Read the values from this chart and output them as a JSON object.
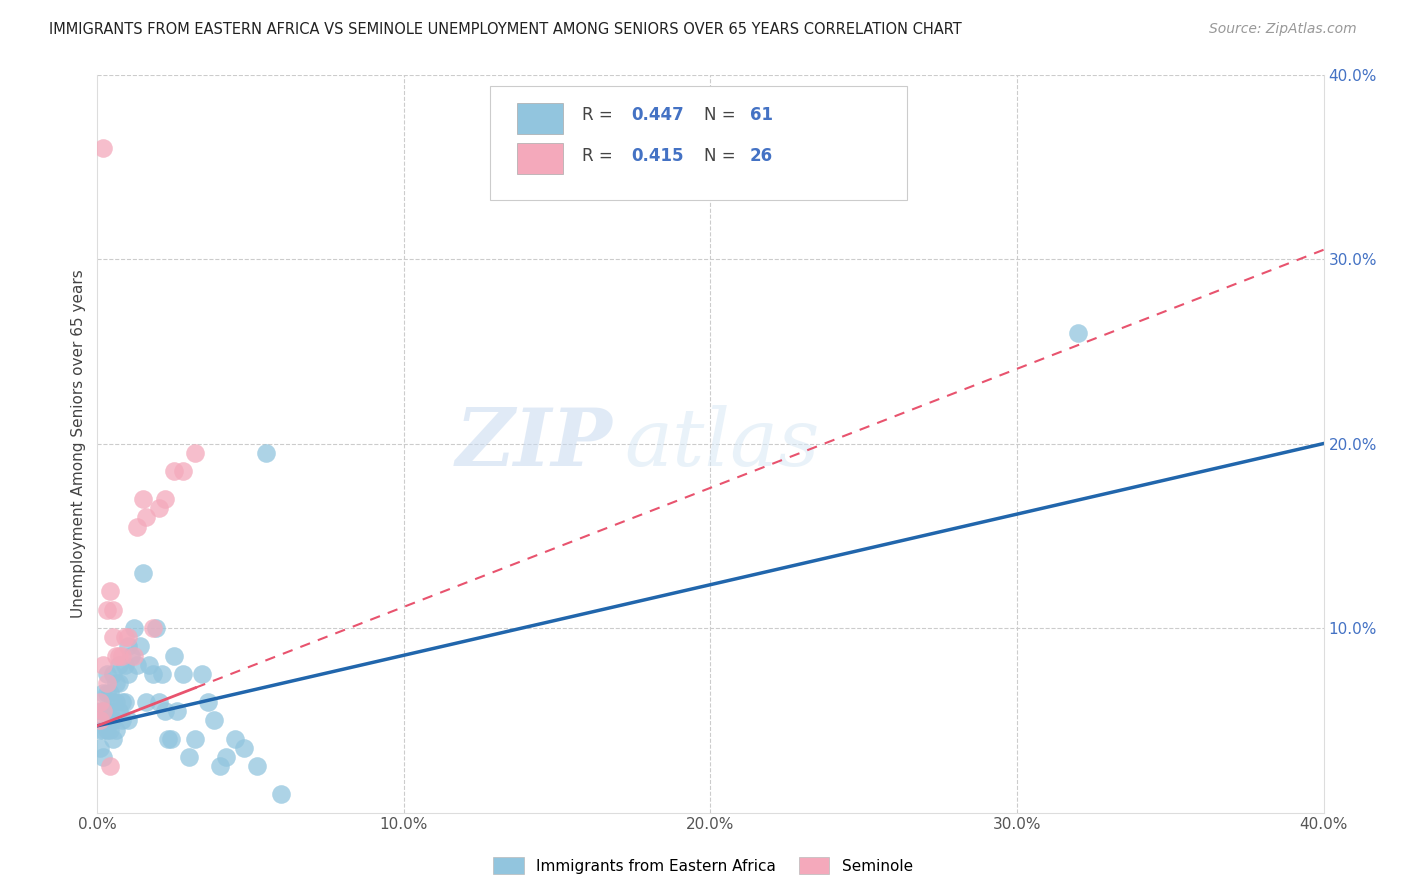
{
  "title": "IMMIGRANTS FROM EASTERN AFRICA VS SEMINOLE UNEMPLOYMENT AMONG SENIORS OVER 65 YEARS CORRELATION CHART",
  "source": "Source: ZipAtlas.com",
  "ylabel": "Unemployment Among Seniors over 65 years",
  "xlim": [
    0.0,
    0.4
  ],
  "ylim": [
    0.0,
    0.4
  ],
  "xtick_labels": [
    "0.0%",
    "",
    "",
    "",
    "",
    "10.0%",
    "",
    "",
    "",
    "",
    "20.0%",
    "",
    "",
    "",
    "",
    "30.0%",
    "",
    "",
    "",
    "",
    "40.0%"
  ],
  "xtick_vals": [
    0.0,
    0.02,
    0.04,
    0.06,
    0.08,
    0.1,
    0.12,
    0.14,
    0.16,
    0.18,
    0.2,
    0.22,
    0.24,
    0.26,
    0.28,
    0.3,
    0.32,
    0.34,
    0.36,
    0.38,
    0.4
  ],
  "xtick_major_labels": [
    "0.0%",
    "10.0%",
    "20.0%",
    "30.0%",
    "40.0%"
  ],
  "xtick_major_vals": [
    0.0,
    0.1,
    0.2,
    0.3,
    0.4
  ],
  "ytick_right_labels": [
    "10.0%",
    "20.0%",
    "30.0%",
    "40.0%"
  ],
  "ytick_right_vals": [
    0.1,
    0.2,
    0.3,
    0.4
  ],
  "legend_label1": "Immigrants from Eastern Africa",
  "legend_label2": "Seminole",
  "R1": 0.447,
  "N1": 61,
  "R2": 0.415,
  "N2": 26,
  "color1": "#92c5de",
  "color2": "#f4a9bb",
  "trendline1_color": "#2166ac",
  "trendline2_color": "#e8536e",
  "watermark_zip": "ZIP",
  "watermark_atlas": "atlas",
  "blue_scatter_x": [
    0.001,
    0.001,
    0.001,
    0.002,
    0.002,
    0.002,
    0.002,
    0.003,
    0.003,
    0.003,
    0.003,
    0.004,
    0.004,
    0.004,
    0.005,
    0.005,
    0.005,
    0.005,
    0.006,
    0.006,
    0.006,
    0.007,
    0.007,
    0.007,
    0.008,
    0.008,
    0.009,
    0.009,
    0.01,
    0.01,
    0.01,
    0.011,
    0.012,
    0.013,
    0.014,
    0.015,
    0.016,
    0.017,
    0.018,
    0.019,
    0.02,
    0.021,
    0.022,
    0.023,
    0.024,
    0.025,
    0.026,
    0.028,
    0.03,
    0.032,
    0.034,
    0.036,
    0.038,
    0.04,
    0.042,
    0.045,
    0.048,
    0.052,
    0.06,
    0.32,
    0.055
  ],
  "blue_scatter_y": [
    0.045,
    0.035,
    0.055,
    0.03,
    0.045,
    0.055,
    0.065,
    0.045,
    0.055,
    0.065,
    0.075,
    0.045,
    0.055,
    0.065,
    0.05,
    0.06,
    0.04,
    0.075,
    0.06,
    0.045,
    0.07,
    0.055,
    0.07,
    0.08,
    0.06,
    0.05,
    0.08,
    0.06,
    0.075,
    0.09,
    0.05,
    0.085,
    0.1,
    0.08,
    0.09,
    0.13,
    0.06,
    0.08,
    0.075,
    0.1,
    0.06,
    0.075,
    0.055,
    0.04,
    0.04,
    0.085,
    0.055,
    0.075,
    0.03,
    0.04,
    0.075,
    0.06,
    0.05,
    0.025,
    0.03,
    0.04,
    0.035,
    0.025,
    0.01,
    0.26,
    0.195
  ],
  "pink_scatter_x": [
    0.001,
    0.001,
    0.002,
    0.002,
    0.003,
    0.003,
    0.004,
    0.004,
    0.005,
    0.005,
    0.006,
    0.007,
    0.008,
    0.009,
    0.01,
    0.012,
    0.013,
    0.015,
    0.016,
    0.018,
    0.02,
    0.022,
    0.025,
    0.028,
    0.032,
    0.002
  ],
  "pink_scatter_y": [
    0.05,
    0.06,
    0.055,
    0.08,
    0.07,
    0.11,
    0.12,
    0.025,
    0.095,
    0.11,
    0.085,
    0.085,
    0.085,
    0.095,
    0.095,
    0.085,
    0.155,
    0.17,
    0.16,
    0.1,
    0.165,
    0.17,
    0.185,
    0.185,
    0.195,
    0.36
  ],
  "trendline1_x0": 0.0,
  "trendline1_y0": 0.047,
  "trendline1_x1": 0.4,
  "trendline1_y1": 0.2,
  "trendline2_x0": 0.0,
  "trendline2_y0": 0.047,
  "trendline2_x1": 0.4,
  "trendline2_y1": 0.305
}
